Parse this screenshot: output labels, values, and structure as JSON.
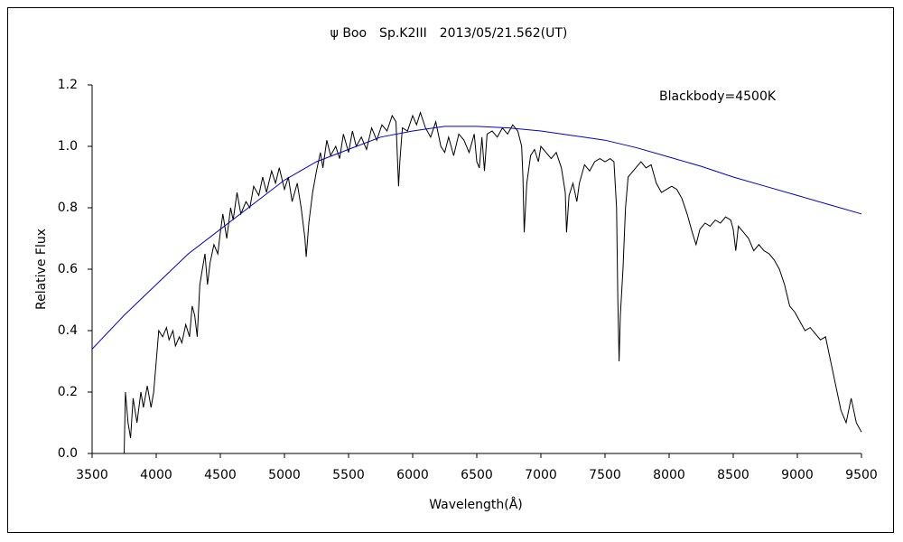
{
  "chart_data": {
    "type": "line",
    "title": "ψ Boo　Sp.K2III　2013/05/21.562(UT)",
    "x_label": "Wavelength(Å)",
    "y_label": "Relative Flux",
    "annotation": "Blackbody=4500K",
    "annotation_color": "#0000cc",
    "xlim": [
      3500,
      9500
    ],
    "xticks": [
      3500,
      4000,
      4500,
      5000,
      5500,
      6000,
      6500,
      7000,
      7500,
      8000,
      8500,
      9000,
      9500
    ],
    "ylim": [
      0,
      1.2
    ],
    "yticks": [
      {
        "value": 0,
        "label": "0.0"
      },
      0.2,
      0.4,
      0.6,
      0.8,
      {
        "value": 1,
        "label": "1.0"
      },
      1.2
    ],
    "series": [
      {
        "color": "#000000",
        "x": [
          3750,
          3760,
          3780,
          3800,
          3820,
          3850,
          3880,
          3900,
          3930,
          3960,
          3980,
          4000,
          4020,
          4050,
          4080,
          4100,
          4130,
          4150,
          4180,
          4200,
          4230,
          4260,
          4280,
          4300,
          4320,
          4340,
          4360,
          4380,
          4400,
          4420,
          4450,
          4480,
          4500,
          4520,
          4550,
          4580,
          4600,
          4630,
          4660,
          4700,
          4730,
          4760,
          4800,
          4830,
          4860,
          4900,
          4930,
          4960,
          5000,
          5030,
          5060,
          5100,
          5130,
          5160,
          5170,
          5190,
          5220,
          5250,
          5280,
          5300,
          5330,
          5360,
          5400,
          5430,
          5460,
          5500,
          5530,
          5560,
          5600,
          5640,
          5680,
          5720,
          5760,
          5800,
          5840,
          5870,
          5890,
          5900,
          5920,
          5960,
          6000,
          6030,
          6060,
          6100,
          6140,
          6180,
          6220,
          6250,
          6280,
          6320,
          6360,
          6400,
          6440,
          6480,
          6500,
          6520,
          6540,
          6560,
          6580,
          6620,
          6660,
          6700,
          6740,
          6780,
          6820,
          6850,
          6860,
          6870,
          6890,
          6920,
          6950,
          6980,
          7000,
          7040,
          7080,
          7120,
          7160,
          7190,
          7200,
          7220,
          7250,
          7280,
          7300,
          7340,
          7380,
          7420,
          7460,
          7500,
          7540,
          7570,
          7590,
          7600,
          7610,
          7620,
          7640,
          7660,
          7680,
          7700,
          7740,
          7780,
          7820,
          7860,
          7900,
          7940,
          7980,
          8020,
          8060,
          8100,
          8140,
          8180,
          8210,
          8240,
          8280,
          8320,
          8360,
          8400,
          8440,
          8480,
          8500,
          8520,
          8540,
          8580,
          8620,
          8660,
          8700,
          8740,
          8780,
          8820,
          8860,
          8900,
          8940,
          8980,
          9020,
          9060,
          9100,
          9140,
          9180,
          9220,
          9260,
          9300,
          9340,
          9380,
          9420,
          9460,
          9500
        ],
        "values": [
          0.0,
          0.2,
          0.1,
          0.05,
          0.18,
          0.1,
          0.2,
          0.15,
          0.22,
          0.15,
          0.2,
          0.3,
          0.4,
          0.38,
          0.41,
          0.37,
          0.4,
          0.35,
          0.38,
          0.36,
          0.42,
          0.38,
          0.48,
          0.45,
          0.38,
          0.55,
          0.6,
          0.65,
          0.55,
          0.62,
          0.68,
          0.65,
          0.72,
          0.78,
          0.7,
          0.8,
          0.76,
          0.85,
          0.78,
          0.82,
          0.8,
          0.87,
          0.84,
          0.9,
          0.85,
          0.92,
          0.88,
          0.93,
          0.86,
          0.9,
          0.82,
          0.88,
          0.8,
          0.7,
          0.64,
          0.75,
          0.85,
          0.92,
          0.98,
          0.93,
          1.02,
          0.97,
          1.0,
          0.96,
          1.04,
          0.98,
          1.05,
          1.0,
          1.03,
          0.99,
          1.06,
          1.02,
          1.07,
          1.05,
          1.1,
          1.08,
          0.87,
          0.95,
          1.06,
          1.05,
          1.1,
          1.07,
          1.11,
          1.06,
          1.03,
          1.08,
          1.0,
          0.98,
          1.03,
          0.97,
          1.04,
          1.02,
          0.98,
          1.04,
          0.95,
          0.93,
          1.03,
          0.92,
          1.04,
          1.05,
          1.03,
          1.06,
          1.04,
          1.07,
          1.05,
          1.0,
          0.9,
          0.72,
          0.88,
          0.97,
          0.99,
          0.95,
          1.0,
          0.98,
          0.96,
          0.98,
          0.93,
          0.85,
          0.72,
          0.84,
          0.88,
          0.82,
          0.88,
          0.94,
          0.92,
          0.95,
          0.96,
          0.95,
          0.96,
          0.95,
          0.8,
          0.5,
          0.3,
          0.45,
          0.6,
          0.8,
          0.9,
          0.91,
          0.93,
          0.95,
          0.93,
          0.94,
          0.88,
          0.85,
          0.86,
          0.87,
          0.86,
          0.83,
          0.78,
          0.72,
          0.68,
          0.73,
          0.75,
          0.74,
          0.76,
          0.75,
          0.77,
          0.76,
          0.73,
          0.66,
          0.74,
          0.72,
          0.7,
          0.66,
          0.68,
          0.66,
          0.65,
          0.63,
          0.6,
          0.55,
          0.48,
          0.46,
          0.43,
          0.4,
          0.41,
          0.39,
          0.37,
          0.38,
          0.3,
          0.22,
          0.14,
          0.1,
          0.18,
          0.1,
          0.07
        ]
      },
      {
        "color": "#0000cc",
        "x": [
          3500,
          3750,
          4000,
          4250,
          4500,
          4750,
          5000,
          5250,
          5500,
          5750,
          6000,
          6250,
          6500,
          6750,
          7000,
          7250,
          7500,
          7750,
          8000,
          8250,
          8500,
          8750,
          9000,
          9250,
          9500
        ],
        "values": [
          0.34,
          0.45,
          0.55,
          0.65,
          0.73,
          0.81,
          0.89,
          0.95,
          0.99,
          1.03,
          1.05,
          1.065,
          1.065,
          1.06,
          1.05,
          1.035,
          1.02,
          0.995,
          0.965,
          0.935,
          0.9,
          0.87,
          0.84,
          0.81,
          0.78
        ]
      }
    ]
  }
}
